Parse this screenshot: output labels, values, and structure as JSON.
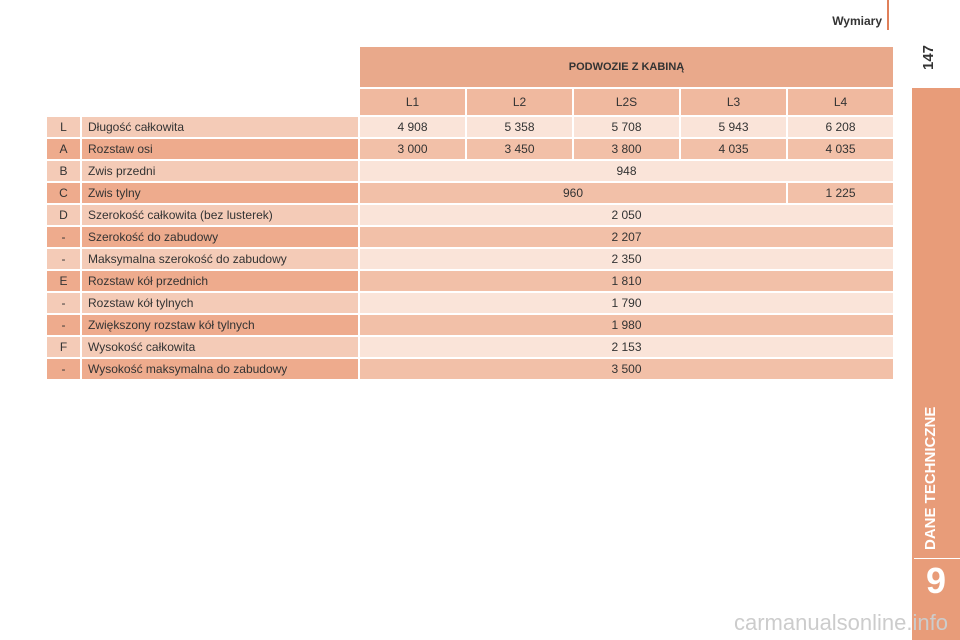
{
  "header": {
    "section": "Wymiary",
    "page_number": "147"
  },
  "side_tab": {
    "title": "DANE TECHNICZNE",
    "chapter": "9"
  },
  "table": {
    "title": "PODWOZIE Z KABINĄ",
    "columns": [
      "L1",
      "L2",
      "L2S",
      "L3",
      "L4"
    ],
    "rows": [
      {
        "code": "L",
        "label": "Długość całkowita",
        "values": [
          "4 908",
          "5 358",
          "5 708",
          "5 943",
          "6 208"
        ]
      },
      {
        "code": "A",
        "label": "Rozstaw osi",
        "values": [
          "3 000",
          "3 450",
          "3 800",
          "4 035",
          "4 035"
        ]
      },
      {
        "code": "B",
        "label": "Zwis przedni",
        "values": [
          "948"
        ]
      },
      {
        "code": "C",
        "label": "Zwis tylny",
        "values": [
          "960",
          "1 225"
        ]
      },
      {
        "code": "D",
        "label": "Szerokość całkowita (bez lusterek)",
        "values": [
          "2 050"
        ]
      },
      {
        "code": "-",
        "label": "Szerokość do zabudowy",
        "values": [
          "2 207"
        ]
      },
      {
        "code": "-",
        "label": "Maksymalna szerokość do zabudowy",
        "values": [
          "2 350"
        ]
      },
      {
        "code": "E",
        "label": "Rozstaw kół przednich",
        "values": [
          "1 810"
        ]
      },
      {
        "code": "-",
        "label": "Rozstaw kół tylnych",
        "values": [
          "1 790"
        ]
      },
      {
        "code": "-",
        "label": "Zwiększony rozstaw kół tylnych",
        "values": [
          "1 980"
        ]
      },
      {
        "code": "F",
        "label": "Wysokość całkowita",
        "values": [
          "2 153"
        ]
      },
      {
        "code": "-",
        "label": "Wysokość maksymalna do zabudowy",
        "values": [
          "3 500"
        ]
      }
    ]
  },
  "watermark": "carmanualsonline.info"
}
